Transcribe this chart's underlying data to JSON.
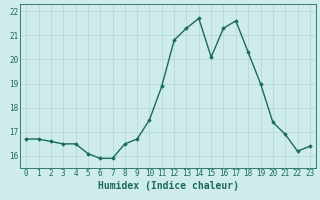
{
  "xlabel": "Humidex (Indice chaleur)",
  "x": [
    0,
    1,
    2,
    3,
    4,
    5,
    6,
    7,
    8,
    9,
    10,
    11,
    12,
    13,
    14,
    15,
    16,
    17,
    18,
    19,
    20,
    21,
    22,
    23
  ],
  "y": [
    16.7,
    16.7,
    16.6,
    16.5,
    16.5,
    16.1,
    15.9,
    15.9,
    16.5,
    16.7,
    17.5,
    18.9,
    20.8,
    21.3,
    21.7,
    20.1,
    21.3,
    21.6,
    20.3,
    19.0,
    17.4,
    16.9,
    16.2,
    16.4
  ],
  "line_color": "#1a6b5a",
  "marker": "D",
  "marker_size": 1.8,
  "bg_color": "#ceecea",
  "grid_color": "#b8d8d4",
  "ylim": [
    15.5,
    22.3
  ],
  "yticks": [
    16,
    17,
    18,
    19,
    20,
    21,
    22
  ],
  "xticks": [
    0,
    1,
    2,
    3,
    4,
    5,
    6,
    7,
    8,
    9,
    10,
    11,
    12,
    13,
    14,
    15,
    16,
    17,
    18,
    19,
    20,
    21,
    22,
    23
  ],
  "tick_color": "#1a6b5a",
  "tick_fontsize": 5.5,
  "xlabel_fontsize": 7.0,
  "line_width": 1.0
}
